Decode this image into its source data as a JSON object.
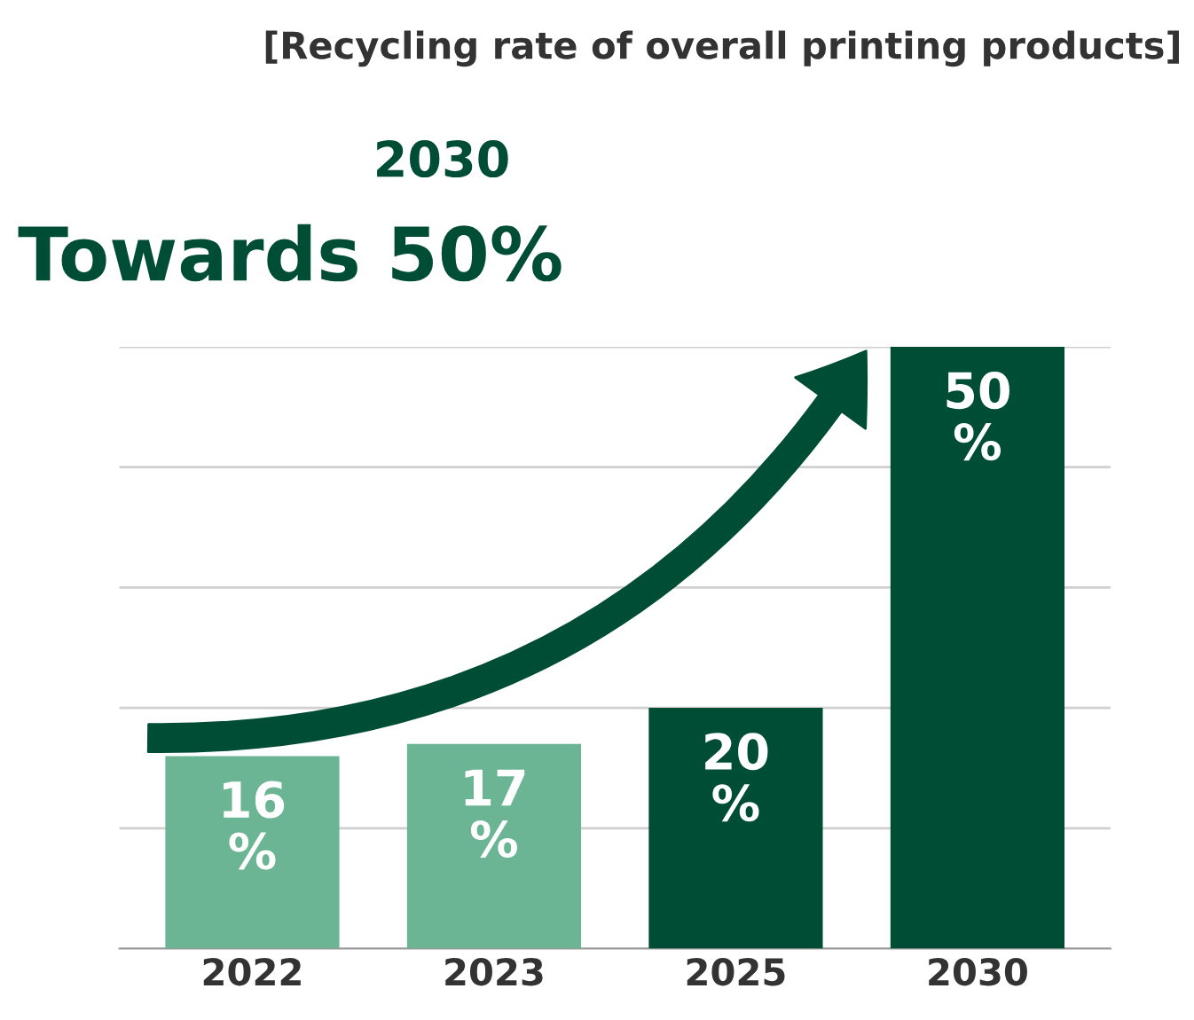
{
  "chart_data": {
    "type": "bar",
    "title": "[Recycling rate of overall printing products]",
    "categories": [
      "2022",
      "2023",
      "2025",
      "2030"
    ],
    "values": [
      16,
      17,
      20,
      50
    ],
    "colors": [
      "#6bb594",
      "#6bb594",
      "#004d36",
      "#004d36"
    ],
    "value_labels": [
      "16\n%",
      "17\n%",
      "20\n%",
      "50\n%"
    ],
    "ylim": [
      0,
      50
    ],
    "yticks": [
      {
        "value": 0,
        "label": null
      },
      {
        "value": 10,
        "label": null
      },
      {
        "value": 20,
        "label": null
      },
      {
        "value": 30,
        "label": null
      },
      {
        "value": 40,
        "label": null
      },
      {
        "value": 50,
        "label": null
      }
    ],
    "grid": "y",
    "tick_labels": "x",
    "annotations": [
      "2030",
      "Towards 50%"
    ]
  }
}
